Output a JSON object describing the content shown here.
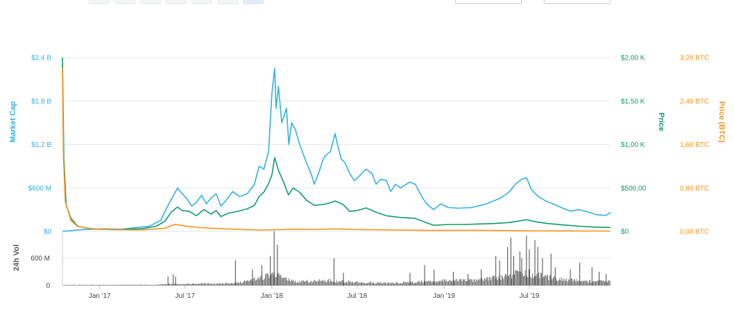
{
  "toolbar": {
    "buttons": [
      "",
      "",
      "",
      "",
      "",
      "",
      ""
    ],
    "active_index": 6
  },
  "chart_data": {
    "type": "line",
    "title": "",
    "x_ticks": [
      "Jan '17",
      "Jul '17",
      "Jan '18",
      "Jul '18",
      "Jan '19",
      "Jul '19"
    ],
    "x_range": [
      "2016-10-14",
      "2019-12-20"
    ],
    "axes": {
      "market_cap": {
        "label": "Market Cap",
        "color": "#2fb0e5",
        "ticks": [
          "$0",
          "$600 M",
          "$1,2 B",
          "$1,8 B",
          "$2,4 B"
        ],
        "range": [
          0,
          2400000000
        ]
      },
      "price": {
        "label": "Price",
        "color": "#0e9b66",
        "ticks": [
          "$0",
          "$500,00",
          "$1,00 K",
          "$1,50 K",
          "$2,00 K"
        ],
        "range": [
          0,
          2000
        ]
      },
      "price_btc": {
        "label": "Price (BTC)",
        "color": "#f7931a",
        "ticks": [
          "0,00 BTC",
          "0,80 BTC",
          "1,60 BTC",
          "2,40 BTC",
          "3,20 BTC"
        ],
        "range": [
          0,
          3.2
        ]
      },
      "volume": {
        "label": "24h Vol",
        "color": "#5f6368",
        "ticks": [
          "0",
          "600 M"
        ],
        "range": [
          0,
          1100000000
        ]
      }
    },
    "series": [
      {
        "name": "Market Cap",
        "axis": "market_cap",
        "color": "#2fb0e5",
        "points": [
          [
            "2016-10-14",
            2000000
          ],
          [
            "2016-11-01",
            10000000
          ],
          [
            "2016-11-15",
            20000000
          ],
          [
            "2016-12-15",
            30000000
          ],
          [
            "2017-01-15",
            35000000
          ],
          [
            "2017-02-15",
            30000000
          ],
          [
            "2017-03-15",
            50000000
          ],
          [
            "2017-04-15",
            70000000
          ],
          [
            "2017-05-10",
            150000000
          ],
          [
            "2017-05-25",
            350000000
          ],
          [
            "2017-06-05",
            480000000
          ],
          [
            "2017-06-15",
            600000000
          ],
          [
            "2017-06-25",
            520000000
          ],
          [
            "2017-07-05",
            450000000
          ],
          [
            "2017-07-15",
            350000000
          ],
          [
            "2017-07-25",
            400000000
          ],
          [
            "2017-08-05",
            500000000
          ],
          [
            "2017-08-15",
            380000000
          ],
          [
            "2017-08-25",
            460000000
          ],
          [
            "2017-09-05",
            520000000
          ],
          [
            "2017-09-15",
            350000000
          ],
          [
            "2017-09-25",
            420000000
          ],
          [
            "2017-10-10",
            550000000
          ],
          [
            "2017-10-25",
            480000000
          ],
          [
            "2017-11-10",
            520000000
          ],
          [
            "2017-11-25",
            650000000
          ],
          [
            "2017-12-05",
            900000000
          ],
          [
            "2017-12-15",
            860000000
          ],
          [
            "2017-12-25",
            1100000000
          ],
          [
            "2018-01-01",
            1900000000
          ],
          [
            "2018-01-07",
            2250000000
          ],
          [
            "2018-01-10",
            1700000000
          ],
          [
            "2018-01-15",
            2000000000
          ],
          [
            "2018-01-22",
            1500000000
          ],
          [
            "2018-02-01",
            1700000000
          ],
          [
            "2018-02-06",
            1200000000
          ],
          [
            "2018-02-12",
            1500000000
          ],
          [
            "2018-02-20",
            1400000000
          ],
          [
            "2018-03-01",
            1200000000
          ],
          [
            "2018-03-15",
            950000000
          ],
          [
            "2018-03-25",
            800000000
          ],
          [
            "2018-04-01",
            650000000
          ],
          [
            "2018-04-10",
            800000000
          ],
          [
            "2018-04-20",
            1000000000
          ],
          [
            "2018-04-25",
            1050000000
          ],
          [
            "2018-05-05",
            1100000000
          ],
          [
            "2018-05-15",
            1350000000
          ],
          [
            "2018-05-20",
            1200000000
          ],
          [
            "2018-05-28",
            1000000000
          ],
          [
            "2018-06-05",
            950000000
          ],
          [
            "2018-06-15",
            800000000
          ],
          [
            "2018-06-25",
            700000000
          ],
          [
            "2018-07-05",
            760000000
          ],
          [
            "2018-07-20",
            860000000
          ],
          [
            "2018-08-01",
            800000000
          ],
          [
            "2018-08-10",
            650000000
          ],
          [
            "2018-08-20",
            720000000
          ],
          [
            "2018-09-01",
            700000000
          ],
          [
            "2018-09-10",
            550000000
          ],
          [
            "2018-09-20",
            650000000
          ],
          [
            "2018-10-01",
            600000000
          ],
          [
            "2018-10-20",
            680000000
          ],
          [
            "2018-11-01",
            650000000
          ],
          [
            "2018-11-15",
            480000000
          ],
          [
            "2018-11-25",
            380000000
          ],
          [
            "2018-12-10",
            300000000
          ],
          [
            "2018-12-25",
            380000000
          ],
          [
            "2019-01-10",
            330000000
          ],
          [
            "2019-02-01",
            320000000
          ],
          [
            "2019-03-01",
            330000000
          ],
          [
            "2019-04-01",
            380000000
          ],
          [
            "2019-05-01",
            460000000
          ],
          [
            "2019-05-20",
            550000000
          ],
          [
            "2019-06-01",
            650000000
          ],
          [
            "2019-06-15",
            720000000
          ],
          [
            "2019-06-25",
            740000000
          ],
          [
            "2019-07-05",
            580000000
          ],
          [
            "2019-07-20",
            480000000
          ],
          [
            "2019-08-05",
            420000000
          ],
          [
            "2019-08-20",
            380000000
          ],
          [
            "2019-09-10",
            320000000
          ],
          [
            "2019-09-25",
            280000000
          ],
          [
            "2019-10-15",
            300000000
          ],
          [
            "2019-11-01",
            270000000
          ],
          [
            "2019-11-20",
            230000000
          ],
          [
            "2019-12-10",
            220000000
          ],
          [
            "2019-12-20",
            260000000
          ]
        ]
      },
      {
        "name": "Price",
        "axis": "price",
        "color": "#0e9b66",
        "points": [
          [
            "2016-10-14",
            2000
          ],
          [
            "2016-10-17",
            850
          ],
          [
            "2016-10-22",
            300
          ],
          [
            "2016-11-01",
            150
          ],
          [
            "2016-11-15",
            60
          ],
          [
            "2016-12-01",
            40
          ],
          [
            "2017-01-01",
            25
          ],
          [
            "2017-02-01",
            20
          ],
          [
            "2017-03-01",
            25
          ],
          [
            "2017-04-01",
            30
          ],
          [
            "2017-05-01",
            60
          ],
          [
            "2017-05-20",
            120
          ],
          [
            "2017-06-01",
            220
          ],
          [
            "2017-06-15",
            280
          ],
          [
            "2017-06-25",
            240
          ],
          [
            "2017-07-10",
            230
          ],
          [
            "2017-07-25",
            180
          ],
          [
            "2017-08-10",
            250
          ],
          [
            "2017-08-25",
            200
          ],
          [
            "2017-09-05",
            240
          ],
          [
            "2017-09-15",
            170
          ],
          [
            "2017-10-01",
            210
          ],
          [
            "2017-10-20",
            230
          ],
          [
            "2017-11-10",
            260
          ],
          [
            "2017-11-25",
            300
          ],
          [
            "2017-12-05",
            400
          ],
          [
            "2017-12-15",
            450
          ],
          [
            "2017-12-25",
            550
          ],
          [
            "2018-01-01",
            650
          ],
          [
            "2018-01-07",
            850
          ],
          [
            "2018-01-15",
            700
          ],
          [
            "2018-01-25",
            580
          ],
          [
            "2018-02-05",
            420
          ],
          [
            "2018-02-15",
            500
          ],
          [
            "2018-03-01",
            450
          ],
          [
            "2018-03-15",
            360
          ],
          [
            "2018-04-01",
            300
          ],
          [
            "2018-04-20",
            310
          ],
          [
            "2018-05-05",
            330
          ],
          [
            "2018-05-15",
            350
          ],
          [
            "2018-06-01",
            310
          ],
          [
            "2018-06-15",
            230
          ],
          [
            "2018-07-01",
            240
          ],
          [
            "2018-07-20",
            270
          ],
          [
            "2018-08-10",
            220
          ],
          [
            "2018-09-01",
            180
          ],
          [
            "2018-10-01",
            160
          ],
          [
            "2018-11-01",
            150
          ],
          [
            "2018-11-20",
            110
          ],
          [
            "2018-12-10",
            70
          ],
          [
            "2019-01-10",
            80
          ],
          [
            "2019-02-15",
            80
          ],
          [
            "2019-03-15",
            85
          ],
          [
            "2019-04-15",
            90
          ],
          [
            "2019-05-15",
            100
          ],
          [
            "2019-06-10",
            120
          ],
          [
            "2019-06-25",
            135
          ],
          [
            "2019-07-15",
            110
          ],
          [
            "2019-08-10",
            90
          ],
          [
            "2019-09-10",
            75
          ],
          [
            "2019-10-15",
            60
          ],
          [
            "2019-11-15",
            50
          ],
          [
            "2019-12-20",
            45
          ]
        ]
      },
      {
        "name": "Price (BTC)",
        "axis": "price_btc",
        "color": "#f7931a",
        "points": [
          [
            "2016-10-14",
            3.0
          ],
          [
            "2016-10-16",
            1.4
          ],
          [
            "2016-10-20",
            0.55
          ],
          [
            "2016-11-01",
            0.2
          ],
          [
            "2016-11-15",
            0.09
          ],
          [
            "2016-12-15",
            0.05
          ],
          [
            "2017-02-01",
            0.03
          ],
          [
            "2017-04-01",
            0.025
          ],
          [
            "2017-05-20",
            0.06
          ],
          [
            "2017-06-10",
            0.13
          ],
          [
            "2017-07-01",
            0.1
          ],
          [
            "2017-08-01",
            0.07
          ],
          [
            "2017-09-01",
            0.055
          ],
          [
            "2017-10-15",
            0.04
          ],
          [
            "2017-12-01",
            0.025
          ],
          [
            "2018-01-07",
            0.03
          ],
          [
            "2018-02-15",
            0.04
          ],
          [
            "2018-04-01",
            0.035
          ],
          [
            "2018-05-15",
            0.045
          ],
          [
            "2018-07-01",
            0.035
          ],
          [
            "2018-09-01",
            0.028
          ],
          [
            "2018-12-01",
            0.018
          ],
          [
            "2019-03-01",
            0.02
          ],
          [
            "2019-06-15",
            0.012
          ],
          [
            "2019-09-15",
            0.009
          ],
          [
            "2019-12-20",
            0.007
          ]
        ]
      }
    ],
    "volume_segments": [
      [
        "2016-10-14",
        15000000
      ],
      [
        "2017-05-01",
        20000000
      ],
      [
        "2017-06-01",
        50000000
      ],
      [
        "2017-07-01",
        40000000
      ],
      [
        "2017-08-01",
        60000000
      ],
      [
        "2017-09-01",
        50000000
      ],
      [
        "2017-10-01",
        80000000
      ],
      [
        "2017-11-01",
        110000000
      ],
      [
        "2017-12-01",
        200000000
      ],
      [
        "2018-01-05",
        350000000
      ],
      [
        "2018-02-01",
        180000000
      ],
      [
        "2018-03-01",
        120000000
      ],
      [
        "2018-05-01",
        150000000
      ],
      [
        "2018-07-01",
        90000000
      ],
      [
        "2018-09-01",
        80000000
      ],
      [
        "2018-11-01",
        100000000
      ],
      [
        "2019-01-01",
        140000000
      ],
      [
        "2019-03-01",
        160000000
      ],
      [
        "2019-05-01",
        260000000
      ],
      [
        "2019-06-15",
        420000000
      ],
      [
        "2019-07-15",
        320000000
      ],
      [
        "2019-09-01",
        200000000
      ],
      [
        "2019-11-01",
        130000000
      ],
      [
        "2019-12-20",
        110000000
      ]
    ],
    "volume_spikes": [
      [
        "2017-05-25",
        200000000
      ],
      [
        "2017-06-05",
        250000000
      ],
      [
        "2017-06-10",
        200000000
      ],
      [
        "2017-10-15",
        550000000
      ],
      [
        "2017-11-20",
        350000000
      ],
      [
        "2017-12-10",
        450000000
      ],
      [
        "2017-12-28",
        650000000
      ],
      [
        "2018-01-05",
        1200000000
      ],
      [
        "2018-01-12",
        900000000
      ],
      [
        "2018-05-12",
        600000000
      ],
      [
        "2018-06-01",
        280000000
      ],
      [
        "2018-10-20",
        280000000
      ],
      [
        "2018-11-20",
        450000000
      ],
      [
        "2018-12-10",
        350000000
      ],
      [
        "2019-01-20",
        300000000
      ],
      [
        "2019-02-20",
        250000000
      ],
      [
        "2019-03-20",
        350000000
      ],
      [
        "2019-04-20",
        650000000
      ],
      [
        "2019-04-28",
        550000000
      ],
      [
        "2019-05-15",
        850000000
      ],
      [
        "2019-05-22",
        1050000000
      ],
      [
        "2019-05-28",
        650000000
      ],
      [
        "2019-06-10",
        750000000
      ],
      [
        "2019-06-14",
        600000000
      ],
      [
        "2019-06-24",
        1100000000
      ],
      [
        "2019-06-30",
        800000000
      ],
      [
        "2019-07-12",
        1000000000
      ],
      [
        "2019-07-18",
        850000000
      ],
      [
        "2019-07-28",
        600000000
      ],
      [
        "2019-08-15",
        700000000
      ],
      [
        "2019-08-24",
        400000000
      ],
      [
        "2019-09-25",
        350000000
      ],
      [
        "2019-10-15",
        500000000
      ],
      [
        "2019-11-10",
        400000000
      ],
      [
        "2019-11-25",
        300000000
      ],
      [
        "2019-12-10",
        250000000
      ]
    ]
  }
}
